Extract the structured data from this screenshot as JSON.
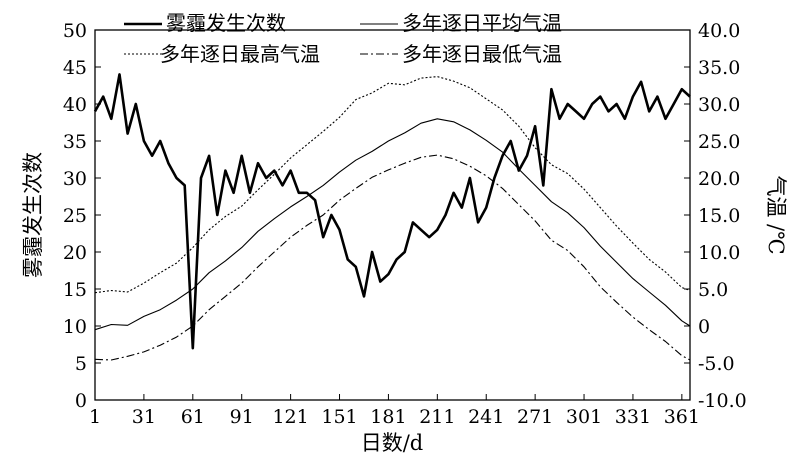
{
  "chart_data": {
    "type": "line",
    "xlabel": "日数/d",
    "ylabel_left": "雾霾发生次数",
    "ylabel_right": "气温 /℃",
    "x_ticks": [
      "1",
      "31",
      "61",
      "91",
      "121",
      "151",
      "181",
      "211",
      "241",
      "271",
      "301",
      "331",
      "361"
    ],
    "y_left_ticks": [
      "0",
      "5",
      "10",
      "15",
      "20",
      "25",
      "30",
      "35",
      "40",
      "45",
      "50"
    ],
    "y_right_ticks": [
      "-10.0",
      "-5.0",
      "0",
      "5.0",
      "10.0",
      "15.0",
      "20.0",
      "25.0",
      "30.0",
      "35.0",
      "40.0"
    ],
    "xlim": [
      1,
      366
    ],
    "ylim_left": [
      0,
      50
    ],
    "ylim_right": [
      -10,
      40
    ],
    "legend": {
      "placement": "top",
      "entries": [
        "雾霾发生次数",
        "多年逐日平均气温",
        "多年逐日最高气温",
        "多年逐日最低气温"
      ]
    },
    "series": [
      {
        "name": "雾霾发生次数",
        "axis": "left",
        "style": "thick-solid",
        "x": [
          1,
          6,
          11,
          16,
          21,
          26,
          31,
          36,
          41,
          46,
          51,
          56,
          61,
          66,
          71,
          76,
          81,
          86,
          91,
          96,
          101,
          106,
          111,
          116,
          121,
          126,
          131,
          136,
          141,
          146,
          151,
          156,
          161,
          166,
          171,
          176,
          181,
          186,
          191,
          196,
          201,
          206,
          211,
          216,
          221,
          226,
          231,
          236,
          241,
          246,
          251,
          256,
          261,
          266,
          271,
          276,
          281,
          286,
          291,
          296,
          301,
          306,
          311,
          316,
          321,
          326,
          331,
          336,
          341,
          346,
          351,
          356,
          361,
          366
        ],
        "values": [
          39,
          41,
          38,
          44,
          36,
          40,
          35,
          33,
          35,
          32,
          30,
          29,
          7,
          30,
          33,
          25,
          31,
          28,
          33,
          28,
          32,
          30,
          31,
          29,
          31,
          28,
          28,
          27,
          22,
          25,
          23,
          19,
          18,
          14,
          20,
          16,
          17,
          19,
          20,
          24,
          23,
          22,
          23,
          25,
          28,
          26,
          30,
          24,
          26,
          30,
          33,
          35,
          31,
          33,
          37,
          29,
          42,
          38,
          40,
          39,
          38,
          40,
          41,
          39,
          40,
          38,
          41,
          43,
          39,
          41,
          38,
          40,
          42,
          41
        ]
      },
      {
        "name": "多年逐日平均气温",
        "axis": "right",
        "style": "solid",
        "x": [
          1,
          11,
          21,
          31,
          41,
          51,
          61,
          71,
          81,
          91,
          101,
          111,
          121,
          131,
          141,
          151,
          161,
          171,
          181,
          191,
          201,
          211,
          221,
          231,
          241,
          251,
          261,
          271,
          281,
          291,
          301,
          311,
          321,
          331,
          341,
          351,
          361,
          366
        ],
        "values": [
          -0.5,
          0.2,
          0.1,
          1.3,
          2.2,
          3.5,
          5.0,
          7.2,
          8.8,
          10.6,
          12.8,
          14.5,
          16.1,
          17.5,
          19.0,
          20.8,
          22.4,
          23.6,
          25.0,
          26.1,
          27.4,
          28.0,
          27.6,
          26.5,
          25.1,
          23.5,
          21.2,
          19.0,
          16.8,
          15.3,
          13.3,
          10.8,
          8.6,
          6.4,
          4.6,
          2.8,
          0.7,
          0.0
        ]
      },
      {
        "name": "多年逐日最高气温",
        "axis": "right",
        "style": "dotted",
        "x": [
          1,
          11,
          21,
          31,
          41,
          51,
          61,
          71,
          81,
          91,
          101,
          111,
          121,
          131,
          141,
          151,
          161,
          171,
          181,
          191,
          201,
          211,
          221,
          231,
          241,
          251,
          261,
          271,
          281,
          291,
          301,
          311,
          321,
          331,
          341,
          351,
          361,
          366
        ],
        "values": [
          4.5,
          4.8,
          4.6,
          5.8,
          7.2,
          8.5,
          10.6,
          13.0,
          14.8,
          16.2,
          18.4,
          20.5,
          22.7,
          24.5,
          26.3,
          28.2,
          30.6,
          31.5,
          32.8,
          32.6,
          33.5,
          33.7,
          33.1,
          32.2,
          30.7,
          29.2,
          27.0,
          24.1,
          21.8,
          20.6,
          18.5,
          16.0,
          13.5,
          11.2,
          9.0,
          7.3,
          5.2,
          4.8
        ]
      },
      {
        "name": "多年逐日最低气温",
        "axis": "right",
        "style": "dash-dot",
        "x": [
          1,
          11,
          21,
          31,
          41,
          51,
          61,
          71,
          81,
          91,
          101,
          111,
          121,
          131,
          141,
          151,
          161,
          171,
          181,
          191,
          201,
          211,
          221,
          231,
          241,
          251,
          261,
          271,
          281,
          291,
          301,
          311,
          321,
          331,
          341,
          351,
          361,
          366
        ],
        "values": [
          -4.5,
          -4.6,
          -4.1,
          -3.5,
          -2.6,
          -1.5,
          0.0,
          2.2,
          4.0,
          5.8,
          8.0,
          10.0,
          12.0,
          13.6,
          15.0,
          17.0,
          18.6,
          20.1,
          21.1,
          22.0,
          22.8,
          23.1,
          22.6,
          21.6,
          20.3,
          18.6,
          16.4,
          14.2,
          11.6,
          10.2,
          8.0,
          5.3,
          3.2,
          1.2,
          -0.5,
          -2.1,
          -4.0,
          -4.6
        ]
      }
    ]
  }
}
